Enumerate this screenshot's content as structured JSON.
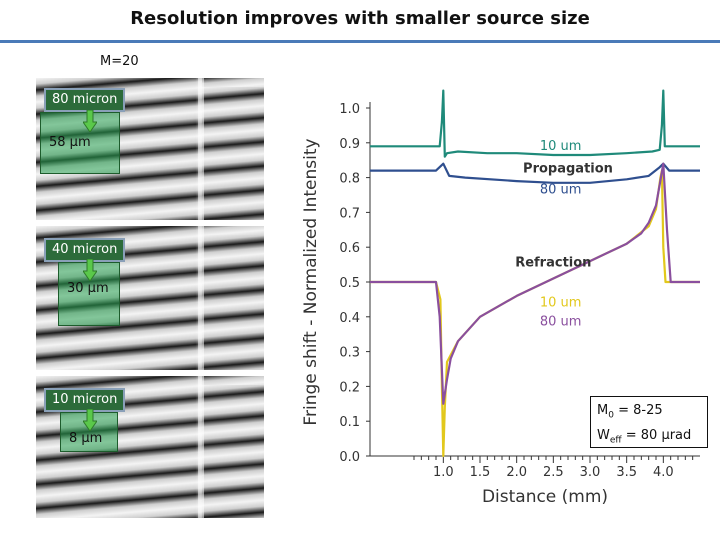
{
  "slide": {
    "title": "Resolution  improves with smaller source size",
    "magnification": "M=20"
  },
  "panels": [
    {
      "source_label": "80 micron",
      "effective_label": "58 µm"
    },
    {
      "source_label": "40 micron",
      "effective_label": "30 µm"
    },
    {
      "source_label": "10 micron",
      "effective_label": "8 µm"
    }
  ],
  "params": {
    "line1_prefix": "M",
    "line1_sub": "0",
    "line1_suffix": " = 8-25",
    "line2_prefix": "W",
    "line2_sub": "eff",
    "line2_suffix": " = 80 µrad"
  },
  "colors": {
    "teal": "#1f8a7a",
    "navy": "#2f4f8f",
    "yellow": "#e2c81c",
    "purple": "#8a4f9e",
    "box_green": "#26a050",
    "title_rule": "#4a7ab8"
  },
  "chart_data": {
    "type": "line",
    "xlabel": "Distance (mm)",
    "ylabel": "Fringe shift - Normalized Intensity",
    "xlim": [
      0.0,
      4.5
    ],
    "ylim": [
      0.0,
      1.0
    ],
    "xticks": [
      "1.0",
      "1.5",
      "2.0",
      "2.5",
      "3.0",
      "3.5",
      "4.0"
    ],
    "xtick_values": [
      1.0,
      1.5,
      2.0,
      2.5,
      3.0,
      3.5,
      4.0
    ],
    "yticks": [
      "0.0",
      "0.1",
      "0.2",
      "0.3",
      "0.4",
      "0.5",
      "0.6",
      "0.7",
      "0.8",
      "0.9",
      "1.0"
    ],
    "ytick_values": [
      0.0,
      0.1,
      0.2,
      0.3,
      0.4,
      0.5,
      0.6,
      0.7,
      0.8,
      0.9,
      1.0
    ],
    "annotations": {
      "propagation": "Propagation",
      "refraction": "Refraction",
      "prop_10": "10 um",
      "prop_80": "80 um",
      "refr_10": "10 um",
      "refr_80": "80 um"
    },
    "series": [
      {
        "name": "Propagation 10 um",
        "color": "#1f8a7a",
        "x": [
          0.0,
          0.95,
          0.98,
          1.0,
          1.02,
          1.05,
          1.2,
          1.6,
          2.0,
          2.5,
          3.0,
          3.5,
          3.85,
          3.95,
          3.98,
          4.0,
          4.02,
          4.05,
          4.5
        ],
        "y": [
          0.89,
          0.89,
          0.96,
          1.05,
          0.86,
          0.87,
          0.875,
          0.87,
          0.87,
          0.865,
          0.865,
          0.87,
          0.875,
          0.88,
          0.95,
          1.05,
          0.89,
          0.89,
          0.89
        ]
      },
      {
        "name": "Propagation 80 um",
        "color": "#2f4f8f",
        "x": [
          0.0,
          0.9,
          1.0,
          1.08,
          1.3,
          2.0,
          2.5,
          3.0,
          3.5,
          3.8,
          3.95,
          4.0,
          4.08,
          4.5
        ],
        "y": [
          0.82,
          0.82,
          0.84,
          0.805,
          0.8,
          0.79,
          0.785,
          0.785,
          0.795,
          0.805,
          0.83,
          0.84,
          0.82,
          0.82
        ]
      },
      {
        "name": "Refraction 10 um",
        "color": "#e2c81c",
        "x": [
          0.0,
          0.9,
          0.96,
          0.98,
          1.0,
          1.02,
          1.05,
          1.2,
          1.5,
          2.0,
          2.5,
          3.0,
          3.5,
          3.8,
          3.9,
          3.96,
          3.98,
          4.0,
          4.03,
          4.5
        ],
        "y": [
          0.5,
          0.5,
          0.45,
          0.2,
          0.0,
          0.14,
          0.27,
          0.33,
          0.4,
          0.46,
          0.51,
          0.56,
          0.61,
          0.66,
          0.71,
          0.8,
          0.82,
          0.6,
          0.5,
          0.5
        ]
      },
      {
        "name": "Refraction 80 um",
        "color": "#8a4f9e",
        "x": [
          0.0,
          0.9,
          0.95,
          1.0,
          1.05,
          1.1,
          1.2,
          1.5,
          2.0,
          2.5,
          3.0,
          3.5,
          3.7,
          3.8,
          3.9,
          3.95,
          4.0,
          4.05,
          4.1,
          4.5
        ],
        "y": [
          0.5,
          0.5,
          0.4,
          0.15,
          0.22,
          0.28,
          0.33,
          0.4,
          0.46,
          0.51,
          0.56,
          0.61,
          0.64,
          0.67,
          0.72,
          0.78,
          0.84,
          0.65,
          0.5,
          0.5
        ]
      }
    ]
  }
}
